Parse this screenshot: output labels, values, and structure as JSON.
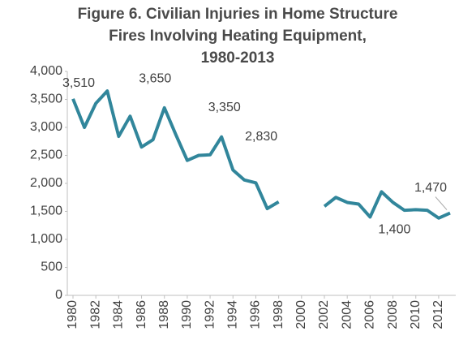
{
  "chart_data": {
    "type": "line",
    "title": [
      "Figure 6. Civilian Injuries in Home Structure",
      "Fires Involving Heating Equipment,",
      "1980-2013"
    ],
    "x": [
      1980,
      1981,
      1982,
      1983,
      1984,
      1985,
      1986,
      1987,
      1988,
      1989,
      1990,
      1991,
      1992,
      1993,
      1994,
      1995,
      1996,
      1997,
      1998,
      1999,
      2000,
      2001,
      2002,
      2003,
      2004,
      2005,
      2006,
      2007,
      2008,
      2009,
      2010,
      2011,
      2012,
      2013
    ],
    "series": [
      {
        "name": "Civilian injuries",
        "color": "#31869b",
        "values": [
          3510,
          3000,
          3430,
          3650,
          2840,
          3200,
          2650,
          2780,
          3350,
          2870,
          2410,
          2500,
          2510,
          2830,
          2240,
          2060,
          2010,
          1550,
          1670,
          null,
          null,
          null,
          1590,
          1750,
          1660,
          1630,
          1400,
          1850,
          1660,
          1520,
          1530,
          1520,
          1380,
          1470
        ],
        "value_labels": [
          "3,510",
          null,
          null,
          "3,650",
          null,
          null,
          null,
          null,
          "3,350",
          null,
          null,
          null,
          null,
          "2,830",
          null,
          null,
          null,
          null,
          null,
          null,
          null,
          null,
          null,
          null,
          null,
          null,
          "1,400",
          null,
          null,
          null,
          null,
          null,
          null,
          "1,470"
        ]
      }
    ],
    "xlim": [
      1980,
      2013
    ],
    "xticks": [
      1980,
      1982,
      1984,
      1986,
      1988,
      1990,
      1992,
      1994,
      1996,
      1998,
      2000,
      2002,
      2004,
      2006,
      2008,
      2010,
      2012
    ],
    "ylim": [
      0,
      4000
    ],
    "yticks": [
      0,
      500,
      {
        "value": 1000,
        "label": "1,000"
      },
      {
        "value": 1500,
        "label": "1,500"
      },
      {
        "value": 2000,
        "label": "2,000"
      },
      {
        "value": 2500,
        "label": "2,500"
      },
      {
        "value": 3000,
        "label": "3,000"
      },
      {
        "value": 3500,
        "label": "3,500"
      },
      {
        "value": 4000,
        "label": "4,000"
      }
    ],
    "grid": false
  }
}
